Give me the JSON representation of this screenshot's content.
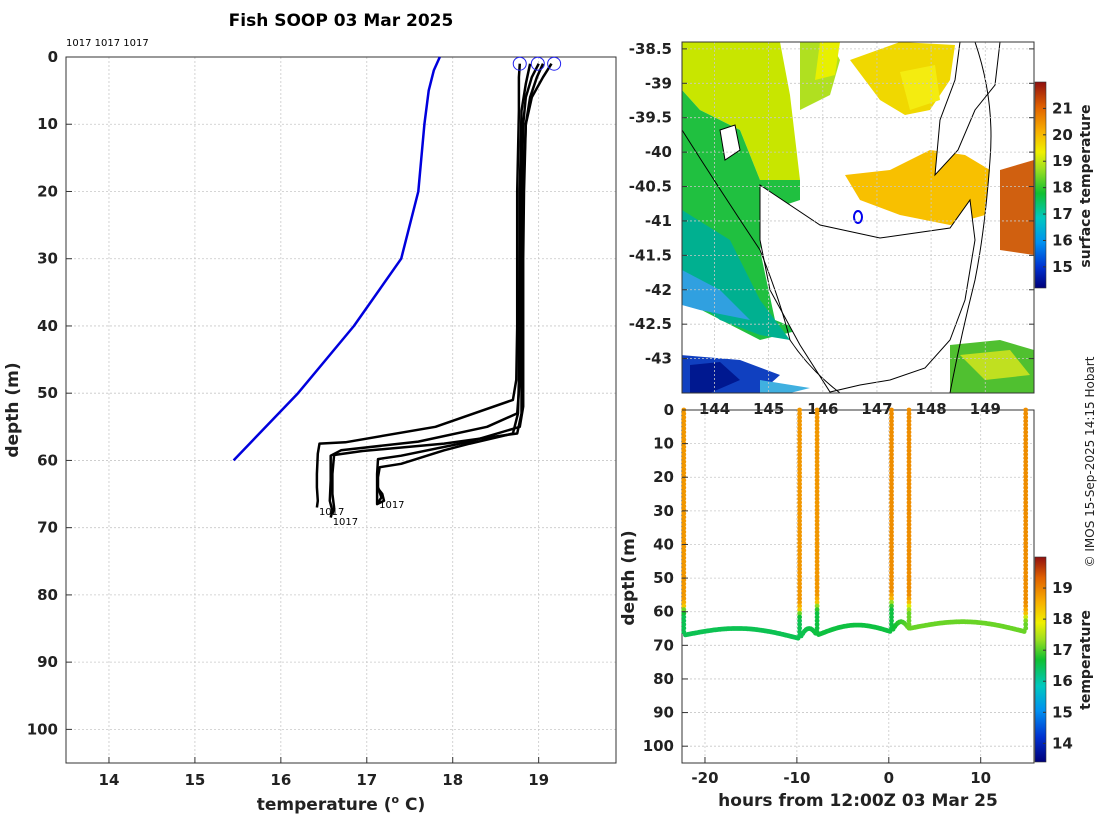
{
  "title": "Fish SOOP 03 Mar 2025",
  "credit": "© IMOS 15-Sep-2025 14:15 Hobart",
  "colors": {
    "profile_line": "#000000",
    "climatology_line": "#0000dd",
    "surface_marker": "#2222ee"
  },
  "chart_data": [
    {
      "type": "line",
      "name": "temperature-depth-profiles",
      "xlabel": "temperature (° C)",
      "xlabel_parts": {
        "main": "temperature (",
        "sup": "o",
        "unit": " C)"
      },
      "ylabel": "depth (m)",
      "xlim": [
        13.5,
        19.9
      ],
      "ylim": [
        105,
        0
      ],
      "xticks": [
        14,
        15,
        16,
        17,
        18,
        19
      ],
      "yticks": [
        0,
        10,
        20,
        30,
        40,
        50,
        60,
        70,
        80,
        90,
        100
      ],
      "top_labels": "1017 1017 1017",
      "series": [
        {
          "name": "climatology",
          "color": "#0000dd",
          "points": [
            [
              17.85,
              0
            ],
            [
              17.78,
              2
            ],
            [
              17.72,
              5
            ],
            [
              17.67,
              10
            ],
            [
              17.6,
              20
            ],
            [
              17.4,
              30
            ],
            [
              16.85,
              40
            ],
            [
              16.2,
              50
            ],
            [
              15.45,
              60
            ]
          ]
        },
        {
          "name": "profile-1",
          "color": "#000000",
          "points": [
            [
              18.78,
              1
            ],
            [
              18.77,
              3
            ],
            [
              18.77,
              8
            ],
            [
              18.75,
              20
            ],
            [
              18.75,
              30
            ],
            [
              18.75,
              40
            ],
            [
              18.74,
              48
            ],
            [
              18.7,
              51
            ],
            [
              17.8,
              55
            ],
            [
              16.75,
              57.3
            ],
            [
              16.45,
              57.5
            ],
            [
              16.43,
              59
            ],
            [
              16.42,
              62
            ],
            [
              16.42,
              64
            ],
            [
              16.43,
              66
            ],
            [
              16.42,
              67
            ]
          ]
        },
        {
          "name": "profile-2",
          "color": "#000000",
          "points": [
            [
              19.0,
              1
            ],
            [
              18.92,
              3
            ],
            [
              18.85,
              6
            ],
            [
              18.82,
              10
            ],
            [
              18.8,
              20
            ],
            [
              18.78,
              30
            ],
            [
              18.78,
              40
            ],
            [
              18.78,
              48
            ],
            [
              18.75,
              53
            ],
            [
              18.4,
              55
            ],
            [
              17.6,
              57.2
            ],
            [
              16.7,
              58.5
            ],
            [
              16.58,
              59.3
            ],
            [
              16.58,
              63
            ],
            [
              16.57,
              66
            ],
            [
              16.6,
              67.5
            ],
            [
              16.58,
              68.5
            ]
          ]
        },
        {
          "name": "profile-3",
          "color": "#000000",
          "points": [
            [
              19.15,
              1
            ],
            [
              19.05,
              3
            ],
            [
              18.92,
              6
            ],
            [
              18.85,
              10
            ],
            [
              18.82,
              20
            ],
            [
              18.8,
              30
            ],
            [
              18.8,
              40
            ],
            [
              18.8,
              48
            ],
            [
              18.8,
              53
            ],
            [
              18.75,
              56
            ],
            [
              17.9,
              57.5
            ],
            [
              16.95,
              58.6
            ],
            [
              16.62,
              59.2
            ],
            [
              16.6,
              62
            ],
            [
              16.6,
              65
            ],
            [
              16.62,
              67
            ],
            [
              16.6,
              68
            ]
          ]
        },
        {
          "name": "profile-4",
          "color": "#000000",
          "points": [
            [
              19.05,
              1
            ],
            [
              18.98,
              3
            ],
            [
              18.9,
              6
            ],
            [
              18.85,
              10
            ],
            [
              18.83,
              20
            ],
            [
              18.82,
              30
            ],
            [
              18.82,
              40
            ],
            [
              18.82,
              48
            ],
            [
              18.82,
              52
            ],
            [
              18.78,
              55
            ],
            [
              18.2,
              57.2
            ],
            [
              17.4,
              59.3
            ],
            [
              17.13,
              59.8
            ],
            [
              17.12,
              62
            ],
            [
              17.12,
              64
            ],
            [
              17.18,
              65
            ],
            [
              17.2,
              66
            ],
            [
              17.12,
              66.5
            ],
            [
              17.12,
              64
            ]
          ]
        },
        {
          "name": "profile-5",
          "color": "#000000",
          "points": [
            [
              18.9,
              1
            ],
            [
              18.85,
              4
            ],
            [
              18.8,
              8
            ],
            [
              18.78,
              20
            ],
            [
              18.78,
              30
            ],
            [
              18.77,
              40
            ],
            [
              18.77,
              48
            ],
            [
              18.76,
              53
            ],
            [
              18.7,
              56
            ],
            [
              18.2,
              57.5
            ],
            [
              17.9,
              58.5
            ],
            [
              17.4,
              60.5
            ],
            [
              17.15,
              61
            ],
            [
              17.13,
              62.5
            ],
            [
              17.13,
              64
            ],
            [
              17.17,
              65.5
            ],
            [
              17.12,
              66.5
            ]
          ]
        }
      ],
      "surface_markers": [
        [
          18.78,
          1
        ],
        [
          18.99,
          1
        ],
        [
          19.18,
          1
        ]
      ],
      "end_labels": [
        {
          "text": "1017",
          "x": 16.42,
          "y": 67.5
        },
        {
          "text": "1017",
          "x": 16.58,
          "y": 69
        },
        {
          "text": "1017",
          "x": 17.12,
          "y": 66.5
        }
      ]
    },
    {
      "type": "heatmap",
      "name": "surface-temperature-map",
      "xlim": [
        143.4,
        149.9
      ],
      "ylim": [
        -43.5,
        -38.4
      ],
      "xticks": [
        144,
        145,
        146,
        147,
        148,
        149
      ],
      "yticks": [
        -38.5,
        -39,
        -39.5,
        -40,
        -40.5,
        -41,
        -41.5,
        -42,
        -42.5,
        -43
      ],
      "colorbar": {
        "label": "surface temperature",
        "range": [
          14.2,
          22.0
        ],
        "ticks": [
          15,
          16,
          17,
          18,
          19,
          20,
          21
        ]
      },
      "station_location": [
        146.5,
        -40.9
      ]
    },
    {
      "type": "scatter",
      "name": "depth-time-section",
      "xlabel": "hours from 12:00Z 03 Mar 25",
      "ylabel": "depth (m)",
      "xlim": [
        -22.5,
        15.8
      ],
      "ylim": [
        105,
        0
      ],
      "xticks": [
        -20,
        -10,
        0,
        10
      ],
      "yticks": [
        0,
        10,
        20,
        30,
        40,
        50,
        60,
        70,
        80,
        90,
        100
      ],
      "colorbar": {
        "label": "temperature",
        "range": [
          13.4,
          20.0
        ],
        "ticks": [
          14,
          15,
          16,
          17,
          18,
          19
        ]
      },
      "casts": [
        {
          "time": -22.3,
          "surface_temp": 18.8,
          "thermocline_depth": 59,
          "bottom_depth": 67,
          "bottom_temp": 16.5
        },
        {
          "time": -9.7,
          "surface_temp": 18.8,
          "thermocline_depth": 60,
          "bottom_depth": 68,
          "bottom_temp": 16.5
        },
        {
          "time": -7.8,
          "surface_temp": 18.8,
          "thermocline_depth": 58,
          "bottom_depth": 67,
          "bottom_temp": 16.6
        },
        {
          "time": 0.3,
          "surface_temp": 18.9,
          "thermocline_depth": 57,
          "bottom_depth": 66,
          "bottom_temp": 16.6
        },
        {
          "time": 2.2,
          "surface_temp": 18.9,
          "thermocline_depth": 58,
          "bottom_depth": 65,
          "bottom_temp": 17.1
        },
        {
          "time": 14.9,
          "surface_temp": 18.9,
          "thermocline_depth": 61,
          "bottom_depth": 66,
          "bottom_temp": 17.1
        }
      ]
    }
  ]
}
